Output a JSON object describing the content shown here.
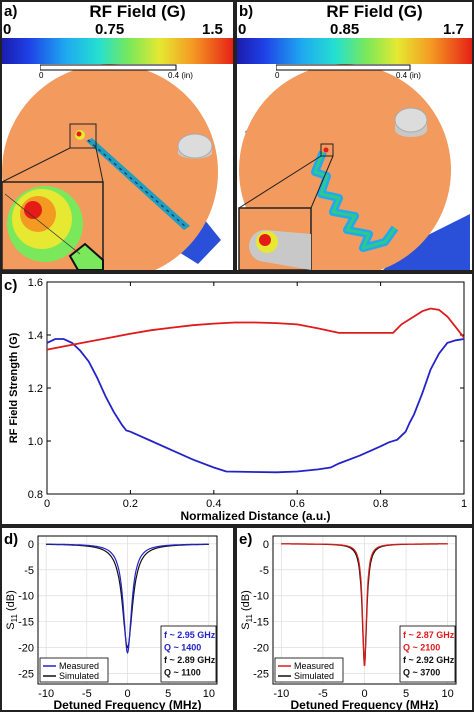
{
  "panel_a": {
    "label": "a)",
    "colorbar_title": "RF Field (G)",
    "colorbar_ticks": [
      "0",
      "0.75",
      "1.5"
    ],
    "scale_ticks": [
      "0",
      "0.4 (in)"
    ]
  },
  "panel_b": {
    "label": "b)",
    "colorbar_title": "RF Field (G)",
    "colorbar_ticks": [
      "0",
      "0.85",
      "1.7"
    ],
    "scale_ticks": [
      "0",
      "0.4 (in)"
    ]
  },
  "colors": {
    "disk": "#f39a5e",
    "blue_line": "#2323c8",
    "red_line": "#e01a1a",
    "black_line": "#111111",
    "substrate": "#2a4fd8"
  },
  "chart_data": [
    {
      "id": "c",
      "type": "line",
      "label": "c)",
      "xlabel": "Normalized Distance (a.u.)",
      "ylabel": "RF Field Strength (G)",
      "xlim": [
        0,
        1
      ],
      "ylim": [
        0.8,
        1.6
      ],
      "xticks": [
        "0",
        "0.2",
        "0.4",
        "0.6",
        "0.8",
        "1"
      ],
      "yticks": [
        "0.8",
        "1.0",
        "1.2",
        "1.4",
        "1.6"
      ],
      "grid": false,
      "series": [
        {
          "color": "#2323c8",
          "x": [
            0,
            0.02,
            0.04,
            0.06,
            0.08,
            0.1,
            0.12,
            0.14,
            0.16,
            0.18,
            0.19,
            0.2,
            0.25,
            0.3,
            0.35,
            0.4,
            0.43,
            0.5,
            0.55,
            0.6,
            0.65,
            0.68,
            0.7,
            0.75,
            0.8,
            0.82,
            0.84,
            0.86,
            0.87,
            0.88,
            0.9,
            0.92,
            0.94,
            0.96,
            0.98,
            1.0
          ],
          "y": [
            1.37,
            1.385,
            1.385,
            1.37,
            1.34,
            1.3,
            1.24,
            1.17,
            1.11,
            1.06,
            1.04,
            1.035,
            1.0,
            0.965,
            0.93,
            0.9,
            0.885,
            0.883,
            0.882,
            0.885,
            0.893,
            0.9,
            0.915,
            0.945,
            0.98,
            0.995,
            1.005,
            1.035,
            1.07,
            1.1,
            1.18,
            1.27,
            1.33,
            1.37,
            1.38,
            1.385
          ]
        },
        {
          "color": "#e01a1a",
          "x": [
            0,
            0.05,
            0.1,
            0.15,
            0.2,
            0.25,
            0.3,
            0.35,
            0.4,
            0.45,
            0.5,
            0.55,
            0.6,
            0.65,
            0.7,
            0.75,
            0.8,
            0.83,
            0.85,
            0.88,
            0.9,
            0.92,
            0.94,
            0.96,
            0.98,
            1.0
          ],
          "y": [
            1.345,
            1.36,
            1.375,
            1.39,
            1.405,
            1.418,
            1.428,
            1.437,
            1.443,
            1.447,
            1.447,
            1.445,
            1.44,
            1.425,
            1.408,
            1.408,
            1.408,
            1.408,
            1.44,
            1.47,
            1.49,
            1.5,
            1.495,
            1.47,
            1.43,
            1.39
          ]
        }
      ]
    },
    {
      "id": "d",
      "type": "line",
      "label": "d)",
      "xlabel": "Detuned Frequency (MHz)",
      "ylabel_main": "S",
      "ylabel_sub": "11",
      "ylabel_unit": "(dB)",
      "xlim": [
        -11,
        11
      ],
      "ylim": [
        -27,
        1.5
      ],
      "xticks": [
        -10,
        -5,
        0,
        5,
        10
      ],
      "yticks": [
        0,
        -5,
        -10,
        -15,
        -20,
        -25
      ],
      "grid": true,
      "legend": {
        "position": "bottom-left",
        "entries": [
          "Measured",
          "Simulated"
        ]
      },
      "annotations": [
        {
          "text": "f ~ 2.95 GHz",
          "color": "#2323c8"
        },
        {
          "text": "Q ~ 1400",
          "color": "#2323c8"
        },
        {
          "text": "f ~ 2.89 GHz",
          "color": "#111111"
        },
        {
          "text": "Q ~ 1100",
          "color": "#111111"
        }
      ],
      "series": [
        {
          "name": "Measured",
          "color": "#2323c8",
          "depth": -21,
          "hw": 0.6
        },
        {
          "name": "Simulated",
          "color": "#111111",
          "depth": -20,
          "hw": 0.75
        }
      ]
    },
    {
      "id": "e",
      "type": "line",
      "label": "e)",
      "xlabel": "Detuned Frequency (MHz)",
      "ylabel_main": "S",
      "ylabel_sub": "11",
      "ylabel_unit": "(dB)",
      "xlim": [
        -11,
        11
      ],
      "ylim": [
        -27,
        1.5
      ],
      "xticks": [
        -10,
        -5,
        0,
        5,
        10
      ],
      "yticks": [
        0,
        -5,
        -10,
        -15,
        -20,
        -25
      ],
      "grid": true,
      "legend": {
        "position": "bottom-left",
        "entries": [
          "Measured",
          "Simulated"
        ]
      },
      "annotations": [
        {
          "text": "f ~ 2.87 GHz",
          "color": "#e01a1a"
        },
        {
          "text": "Q ~ 2100",
          "color": "#e01a1a"
        },
        {
          "text": "f ~ 2.92 GHz",
          "color": "#111111"
        },
        {
          "text": "Q ~ 3700",
          "color": "#111111"
        }
      ],
      "series": [
        {
          "name": "Measured",
          "color": "#e01a1a",
          "depth": -23.5,
          "hw": 0.28
        },
        {
          "name": "Simulated",
          "color": "#111111",
          "depth": -23.5,
          "hw": 0.32
        }
      ]
    }
  ]
}
